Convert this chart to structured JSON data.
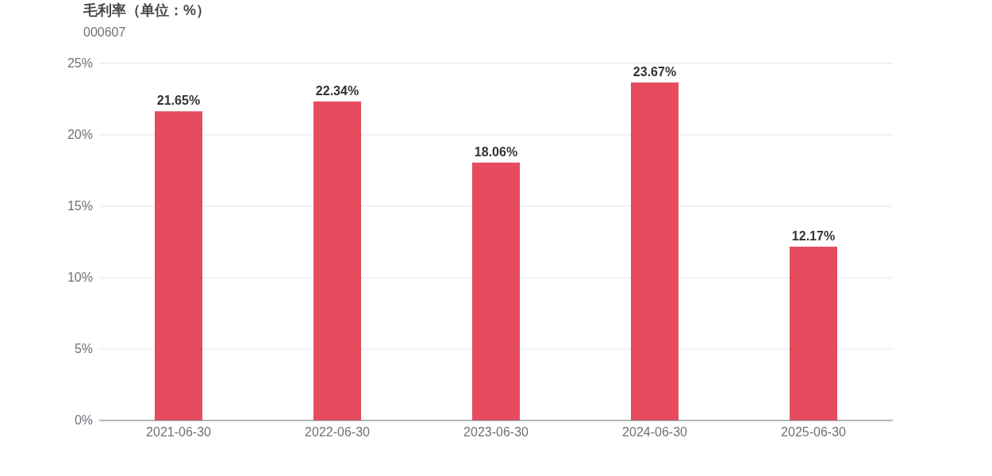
{
  "chart_data": {
    "type": "bar",
    "title": "毛利率（单位：%）",
    "subtitle": "000607",
    "categories": [
      "2021-06-30",
      "2022-06-30",
      "2023-06-30",
      "2024-06-30",
      "2025-06-30"
    ],
    "values": [
      21.65,
      22.34,
      18.06,
      23.67,
      12.17
    ],
    "value_labels": [
      "21.65%",
      "22.34%",
      "18.06%",
      "23.67%",
      "12.17%"
    ],
    "color": "#e64c5e",
    "ylim": [
      0,
      25
    ],
    "yticks": [
      {
        "value": 0,
        "label": "0%"
      },
      {
        "value": 5,
        "label": "5%"
      },
      {
        "value": 10,
        "label": "10%"
      },
      {
        "value": 15,
        "label": "15%"
      },
      {
        "value": 20,
        "label": "20%"
      },
      {
        "value": 25,
        "label": "25%"
      }
    ],
    "grid": "y"
  }
}
